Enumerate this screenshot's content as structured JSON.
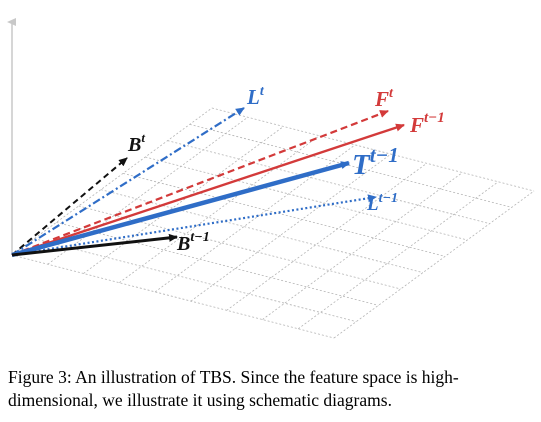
{
  "diagram": {
    "colors": {
      "grid": "#b4b4b4",
      "axis": "#c8c8c8",
      "black": "#111111",
      "red": "#d33a3a",
      "blue": "#2f6dc7"
    },
    "vectors": [
      {
        "name": "B^t",
        "base": "B",
        "sup": "t",
        "color": "black",
        "style": "dashed",
        "weight": "thin"
      },
      {
        "name": "L^t",
        "base": "L",
        "sup": "t",
        "color": "blue",
        "style": "dashdot",
        "weight": "thin"
      },
      {
        "name": "F^t",
        "base": "F",
        "sup": "t",
        "color": "red",
        "style": "dashed",
        "weight": "thin"
      },
      {
        "name": "F^{t-1}",
        "base": "F",
        "sup": "t−1",
        "color": "red",
        "style": "solid",
        "weight": "thin"
      },
      {
        "name": "T^{t-1}",
        "base": "T",
        "sup": "t−1",
        "color": "blue",
        "style": "solid",
        "weight": "bold"
      },
      {
        "name": "L^{t-1}",
        "base": "L",
        "sup": "t−1",
        "color": "blue",
        "style": "dotted",
        "weight": "thin"
      },
      {
        "name": "B^{t-1}",
        "base": "B",
        "sup": "t−1",
        "color": "black",
        "style": "solid",
        "weight": "bold"
      }
    ]
  },
  "caption": "Figure 3: An illustration of TBS. Since the feature space is high-dimensional, we illustrate it using schematic diagrams."
}
